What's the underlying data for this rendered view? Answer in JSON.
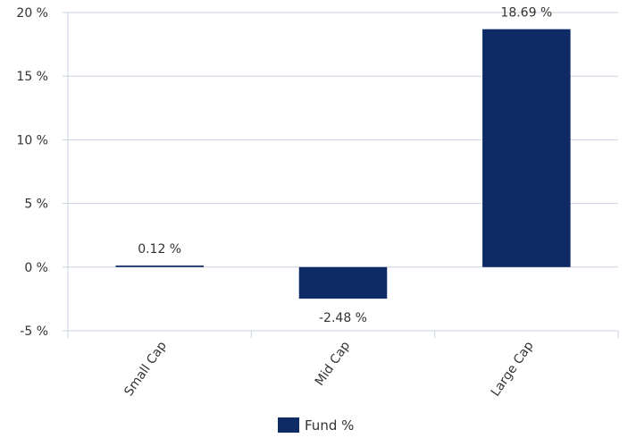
{
  "chart_data": {
    "type": "bar",
    "categories": [
      "Small Cap",
      "Mid Cap",
      "Large Cap"
    ],
    "series": [
      {
        "name": "Fund %",
        "values": [
          0.12,
          -2.48,
          18.69
        ],
        "color": "#0f2b66"
      }
    ],
    "data_labels": [
      "0.12 %",
      "-2.48 %",
      "18.69 %"
    ],
    "ylim": [
      -5,
      20
    ],
    "yticks": [
      -5,
      0,
      5,
      10,
      15,
      20
    ],
    "ytick_labels": [
      "-5 %",
      "0 %",
      "5 %",
      "10 %",
      "15 %",
      "20 %"
    ],
    "title": "",
    "xlabel": "",
    "ylabel": "",
    "grid": true,
    "legend": "bottom-center",
    "gridline_color": "#c8d3df"
  }
}
